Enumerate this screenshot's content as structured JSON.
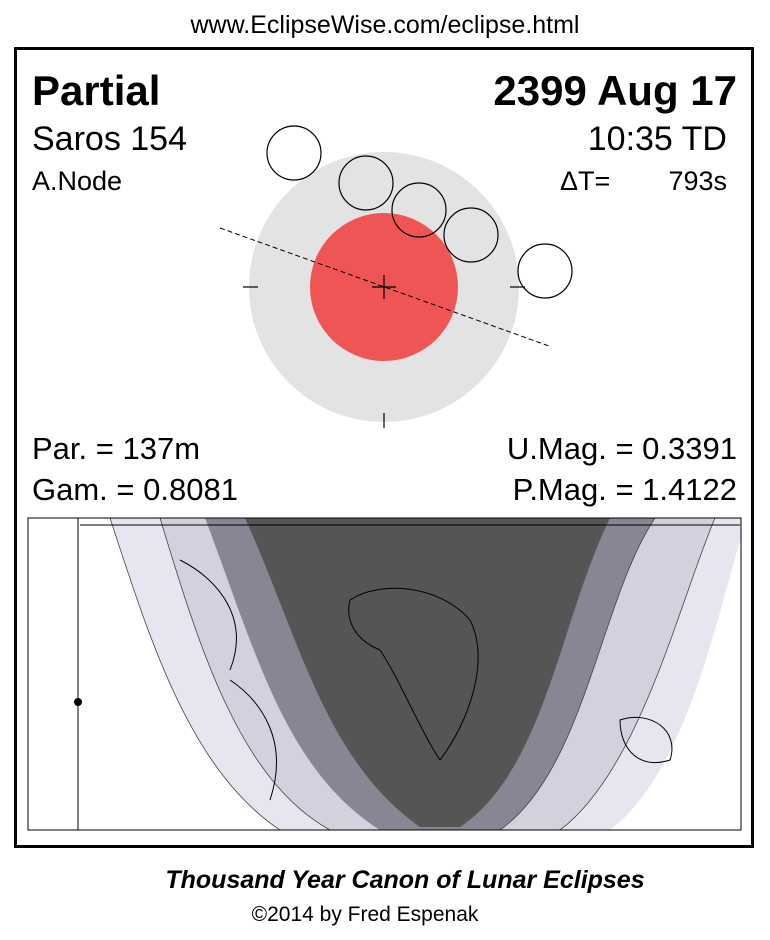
{
  "header": {
    "url": "www.EclipseWise.com/eclipse.html"
  },
  "panel": {
    "type": "Partial",
    "date": "2399 Aug 17",
    "saros": "Saros 154",
    "time": "10:35 TD",
    "node": "A.Node",
    "delta_t_label": "ΔT=",
    "delta_t_value": "793s"
  },
  "stats": {
    "par": "Par. = 137m",
    "gam": "Gam. = 0.8081",
    "umag": "U.Mag. = 0.3391",
    "pmag": "P.Mag. = 1.4122"
  },
  "footer": {
    "title": "Thousand Year Canon of Lunar Eclipses",
    "copyright": "©2014 by Fred Espenak"
  }
}
